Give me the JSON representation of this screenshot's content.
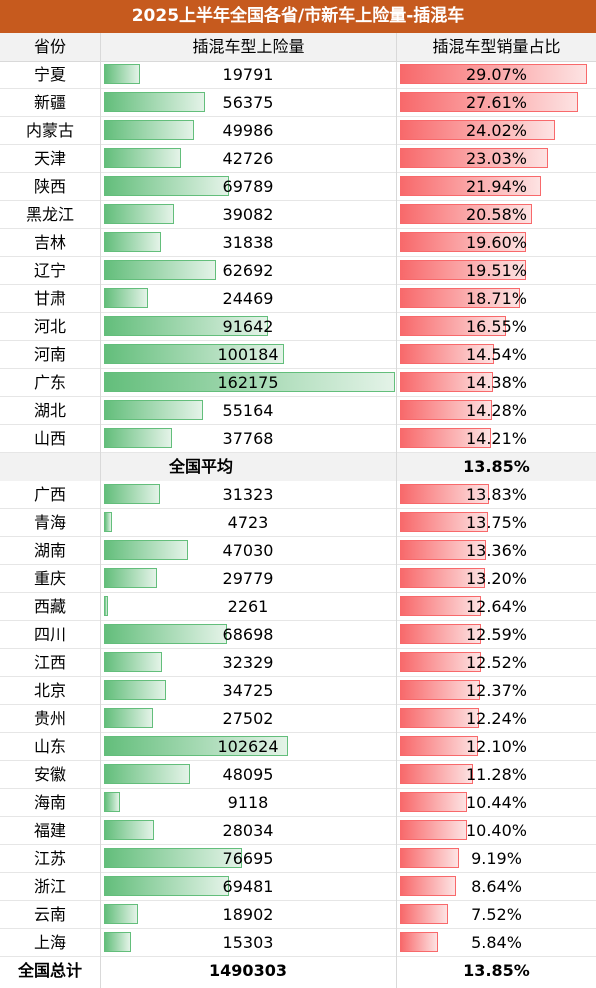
{
  "title": "2025上半年全国各省/市新车上险量-插混车",
  "headers": [
    "省份",
    "插混车型上险量",
    "插混车型销量占比"
  ],
  "colors": {
    "title_bg": "#c65a1e",
    "green_bar": "#63be7b",
    "red_bar": "#f8696b"
  },
  "chart_data": {
    "type": "table",
    "title": "2025上半年全国各省/市新车上险量-插混车",
    "columns": [
      "省份",
      "插混车型上险量",
      "插混车型销量占比"
    ],
    "bar_max_count": 162175,
    "bar_max_pct": 29.07,
    "rows_top": [
      {
        "province": "宁夏",
        "count": 19791,
        "pct": 29.07,
        "pct_label": "29.07%"
      },
      {
        "province": "新疆",
        "count": 56375,
        "pct": 27.61,
        "pct_label": "27.61%"
      },
      {
        "province": "内蒙古",
        "count": 49986,
        "pct": 24.02,
        "pct_label": "24.02%"
      },
      {
        "province": "天津",
        "count": 42726,
        "pct": 23.03,
        "pct_label": "23.03%"
      },
      {
        "province": "陕西",
        "count": 69789,
        "pct": 21.94,
        "pct_label": "21.94%"
      },
      {
        "province": "黑龙江",
        "count": 39082,
        "pct": 20.58,
        "pct_label": "20.58%"
      },
      {
        "province": "吉林",
        "count": 31838,
        "pct": 19.6,
        "pct_label": "19.60%"
      },
      {
        "province": "辽宁",
        "count": 62692,
        "pct": 19.51,
        "pct_label": "19.51%"
      },
      {
        "province": "甘肃",
        "count": 24469,
        "pct": 18.71,
        "pct_label": "18.71%"
      },
      {
        "province": "河北",
        "count": 91642,
        "pct": 16.55,
        "pct_label": "16.55%"
      },
      {
        "province": "河南",
        "count": 100184,
        "pct": 14.54,
        "pct_label": "14.54%"
      },
      {
        "province": "广东",
        "count": 162175,
        "pct": 14.38,
        "pct_label": "14.38%"
      },
      {
        "province": "湖北",
        "count": 55164,
        "pct": 14.28,
        "pct_label": "14.28%"
      },
      {
        "province": "山西",
        "count": 37768,
        "pct": 14.21,
        "pct_label": "14.21%"
      }
    ],
    "average": {
      "label": "全国平均",
      "pct_label": "13.85%"
    },
    "rows_bottom": [
      {
        "province": "广西",
        "count": 31323,
        "pct": 13.83,
        "pct_label": "13.83%"
      },
      {
        "province": "青海",
        "count": 4723,
        "pct": 13.75,
        "pct_label": "13.75%"
      },
      {
        "province": "湖南",
        "count": 47030,
        "pct": 13.36,
        "pct_label": "13.36%"
      },
      {
        "province": "重庆",
        "count": 29779,
        "pct": 13.2,
        "pct_label": "13.20%"
      },
      {
        "province": "西藏",
        "count": 2261,
        "pct": 12.64,
        "pct_label": "12.64%"
      },
      {
        "province": "四川",
        "count": 68698,
        "pct": 12.59,
        "pct_label": "12.59%"
      },
      {
        "province": "江西",
        "count": 32329,
        "pct": 12.52,
        "pct_label": "12.52%"
      },
      {
        "province": "北京",
        "count": 34725,
        "pct": 12.37,
        "pct_label": "12.37%"
      },
      {
        "province": "贵州",
        "count": 27502,
        "pct": 12.24,
        "pct_label": "12.24%"
      },
      {
        "province": "山东",
        "count": 102624,
        "pct": 12.1,
        "pct_label": "12.10%"
      },
      {
        "province": "安徽",
        "count": 48095,
        "pct": 11.28,
        "pct_label": "11.28%"
      },
      {
        "province": "海南",
        "count": 9118,
        "pct": 10.44,
        "pct_label": "10.44%"
      },
      {
        "province": "福建",
        "count": 28034,
        "pct": 10.4,
        "pct_label": "10.40%"
      },
      {
        "province": "江苏",
        "count": 76695,
        "pct": 9.19,
        "pct_label": "9.19%"
      },
      {
        "province": "浙江",
        "count": 69481,
        "pct": 8.64,
        "pct_label": "8.64%"
      },
      {
        "province": "云南",
        "count": 18902,
        "pct": 7.52,
        "pct_label": "7.52%"
      },
      {
        "province": "上海",
        "count": 15303,
        "pct": 5.84,
        "pct_label": "5.84%"
      }
    ],
    "total": {
      "label": "全国总计",
      "count": 1490303,
      "pct_label": "13.85%"
    }
  }
}
